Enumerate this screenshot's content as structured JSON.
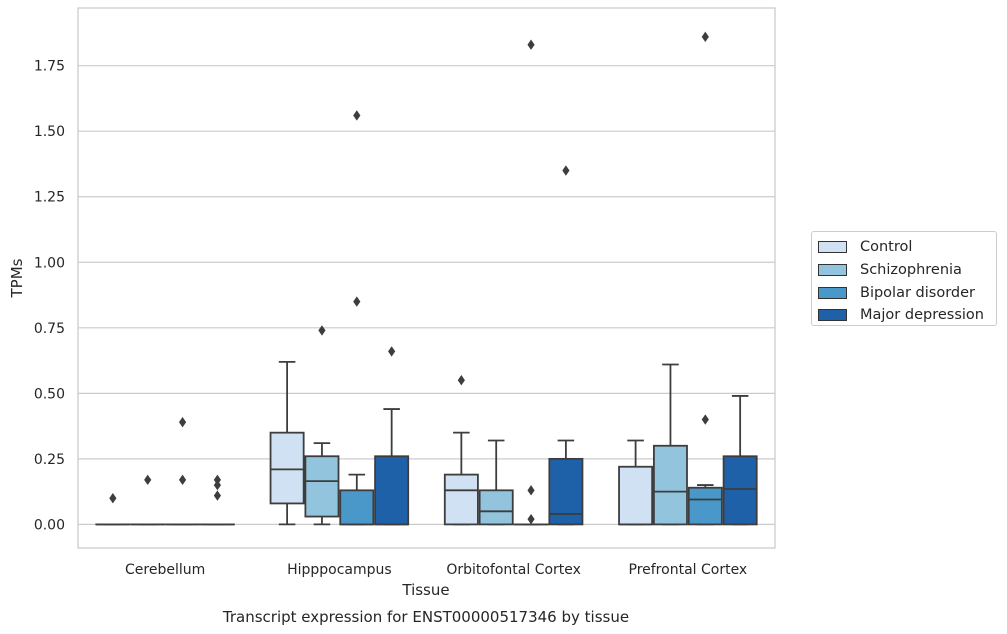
{
  "chart_data": {
    "type": "boxplot",
    "caption": "Transcript expression for ENST00000517346 by tissue",
    "xlabel": "Tissue",
    "ylabel": "TPMs",
    "ylim": [
      -0.09,
      1.97
    ],
    "yticks": [
      "0.00",
      "0.25",
      "0.50",
      "0.75",
      "1.00",
      "1.25",
      "1.50",
      "1.75"
    ],
    "grid": "horizontal",
    "legend_position": "right",
    "categories": [
      "Cerebellum",
      "Hipppocampus",
      "Orbitofontal Cortex",
      "Prefrontal Cortex"
    ],
    "series": [
      {
        "name": "Control",
        "color": "#cfe1f2",
        "boxes": [
          {
            "q1": 0,
            "median": 0,
            "q3": 0,
            "whisker_low": 0,
            "whisker_high": 0,
            "outliers": [
              0.1
            ]
          },
          {
            "q1": 0.08,
            "median": 0.21,
            "q3": 0.35,
            "whisker_low": 0,
            "whisker_high": 0.62,
            "outliers": []
          },
          {
            "q1": 0,
            "median": 0.13,
            "q3": 0.19,
            "whisker_low": 0,
            "whisker_high": 0.35,
            "outliers": [
              0.55
            ]
          },
          {
            "q1": 0,
            "median": 0,
            "q3": 0.22,
            "whisker_low": 0,
            "whisker_high": 0.32,
            "outliers": []
          }
        ]
      },
      {
        "name": "Schizophrenia",
        "color": "#93c4de",
        "boxes": [
          {
            "q1": 0,
            "median": 0,
            "q3": 0,
            "whisker_low": 0,
            "whisker_high": 0,
            "outliers": [
              0.17
            ]
          },
          {
            "q1": 0.03,
            "median": 0.165,
            "q3": 0.26,
            "whisker_low": 0,
            "whisker_high": 0.31,
            "outliers": [
              0.74
            ]
          },
          {
            "q1": 0,
            "median": 0.05,
            "q3": 0.13,
            "whisker_low": 0,
            "whisker_high": 0.32,
            "outliers": []
          },
          {
            "q1": 0,
            "median": 0.125,
            "q3": 0.3,
            "whisker_low": 0,
            "whisker_high": 0.61,
            "outliers": []
          }
        ]
      },
      {
        "name": "Bipolar disorder",
        "color": "#4a98c9",
        "boxes": [
          {
            "q1": 0,
            "median": 0,
            "q3": 0,
            "whisker_low": 0,
            "whisker_high": 0,
            "outliers": [
              0.17,
              0.39
            ]
          },
          {
            "q1": 0,
            "median": 0,
            "q3": 0.13,
            "whisker_low": 0,
            "whisker_high": 0.19,
            "outliers": [
              0.85,
              1.56
            ]
          },
          {
            "q1": 0,
            "median": 0,
            "q3": 0,
            "whisker_low": 0,
            "whisker_high": 0,
            "outliers": [
              0.02,
              0.13,
              1.83
            ]
          },
          {
            "q1": 0,
            "median": 0.095,
            "q3": 0.14,
            "whisker_low": 0,
            "whisker_high": 0.15,
            "outliers": [
              0.4,
              1.86
            ]
          }
        ]
      },
      {
        "name": "Major depression",
        "color": "#1f61a8",
        "boxes": [
          {
            "q1": 0,
            "median": 0,
            "q3": 0,
            "whisker_low": 0,
            "whisker_high": 0,
            "outliers": [
              0.11,
              0.15,
              0.17
            ]
          },
          {
            "q1": 0,
            "median": 0,
            "q3": 0.26,
            "whisker_low": 0,
            "whisker_high": 0.44,
            "outliers": [
              0.66
            ]
          },
          {
            "q1": 0,
            "median": 0.04,
            "q3": 0.25,
            "whisker_low": 0,
            "whisker_high": 0.32,
            "outliers": [
              1.35
            ]
          },
          {
            "q1": 0,
            "median": 0.135,
            "q3": 0.26,
            "whisker_low": 0,
            "whisker_high": 0.49,
            "outliers": []
          }
        ]
      }
    ]
  }
}
